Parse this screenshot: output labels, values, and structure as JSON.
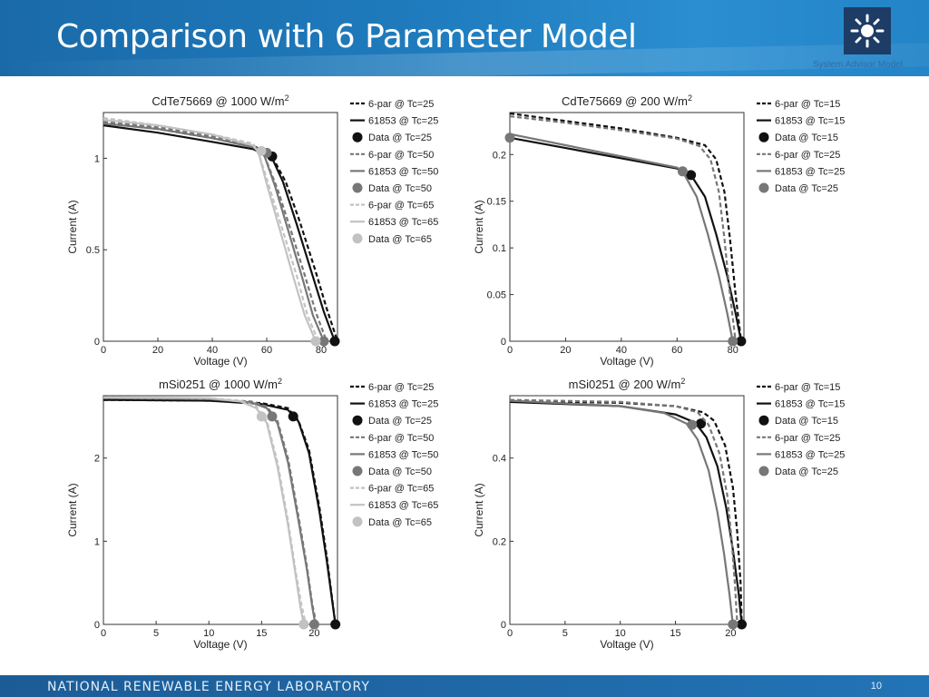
{
  "slide": {
    "title": "Comparison with 6 Parameter Model",
    "logo_icon": "sun-icon",
    "logo_caption": "System Advisor Model",
    "footer": "NATIONAL RENEWABLE ENERGY LABORATORY",
    "page_number": "10"
  },
  "chart_data": [
    {
      "type": "line",
      "title": "CdTe75669 @ 1000 W/m",
      "title_sup": "2",
      "xlabel": "Voltage (V)",
      "ylabel": "Current (A)",
      "xlim": [
        0,
        86
      ],
      "ylim": [
        0,
        1.25
      ],
      "xticks": [
        0,
        20,
        40,
        60,
        80
      ],
      "yticks": [
        0,
        0.5,
        1
      ],
      "ytick_labels": [
        "0",
        "0.5",
        "1"
      ],
      "legend": [
        "6-par @ Tc=25",
        "61853 @ Tc=25",
        "Data @ Tc=25",
        "6-par @ Tc=50",
        "61853 @ Tc=50",
        "Data @ Tc=50",
        "6-par @ Tc=65",
        "61853 @ Tc=65",
        "Data @ Tc=65"
      ],
      "series": [
        {
          "name": "6-par @ Tc=25",
          "color": "#111111",
          "dash": true,
          "x": [
            0,
            20,
            40,
            55,
            62,
            67,
            72,
            78,
            82,
            86
          ],
          "y": [
            1.2,
            1.16,
            1.11,
            1.07,
            1.01,
            0.87,
            0.66,
            0.38,
            0.18,
            0
          ]
        },
        {
          "name": "61853 @ Tc=25",
          "color": "#111111",
          "dash": false,
          "x": [
            0,
            20,
            40,
            55,
            62,
            66,
            71,
            76,
            81,
            85
          ],
          "y": [
            1.18,
            1.14,
            1.09,
            1.05,
            1.0,
            0.87,
            0.64,
            0.4,
            0.16,
            0
          ]
        },
        {
          "name": "Data @ Tc=25",
          "color": "#111111",
          "marker": true,
          "x": [
            62,
            85
          ],
          "y": [
            1.01,
            0
          ]
        },
        {
          "name": "6-par @ Tc=50",
          "color": "#777777",
          "dash": true,
          "x": [
            0,
            20,
            40,
            55,
            59,
            64,
            69,
            74,
            78,
            82
          ],
          "y": [
            1.2,
            1.17,
            1.12,
            1.07,
            1.02,
            0.83,
            0.6,
            0.36,
            0.16,
            0
          ]
        },
        {
          "name": "61853 @ Tc=50",
          "color": "#777777",
          "dash": false,
          "x": [
            0,
            20,
            40,
            55,
            59,
            63,
            68,
            73,
            77,
            81
          ],
          "y": [
            1.19,
            1.16,
            1.11,
            1.06,
            1.02,
            0.85,
            0.6,
            0.35,
            0.14,
            0
          ]
        },
        {
          "name": "Data @ Tc=50",
          "color": "#777777",
          "marker": true,
          "x": [
            60,
            81
          ],
          "y": [
            1.03,
            0
          ]
        },
        {
          "name": "6-par @ Tc=65",
          "color": "#c2c2c2",
          "dash": true,
          "x": [
            0,
            20,
            40,
            55,
            57,
            61,
            66,
            71,
            75,
            79
          ],
          "y": [
            1.22,
            1.18,
            1.13,
            1.08,
            1.03,
            0.84,
            0.6,
            0.36,
            0.14,
            0
          ]
        },
        {
          "name": "61853 @ Tc=65",
          "color": "#c2c2c2",
          "dash": false,
          "x": [
            0,
            20,
            40,
            55,
            57,
            60,
            65,
            70,
            74,
            78
          ],
          "y": [
            1.21,
            1.18,
            1.13,
            1.07,
            1.03,
            0.86,
            0.6,
            0.34,
            0.14,
            0
          ]
        },
        {
          "name": "Data @ Tc=65",
          "color": "#c2c2c2",
          "marker": true,
          "x": [
            58,
            78
          ],
          "y": [
            1.04,
            0
          ]
        }
      ]
    },
    {
      "type": "line",
      "title": "CdTe75669 @ 200 W/m",
      "title_sup": "2",
      "xlabel": "Voltage (V)",
      "ylabel": "Current (A)",
      "xlim": [
        0,
        84
      ],
      "ylim": [
        0,
        0.245
      ],
      "xticks": [
        0,
        20,
        40,
        60,
        80
      ],
      "yticks": [
        0,
        0.05,
        0.1,
        0.15,
        0.2
      ],
      "ytick_labels": [
        "0",
        "0.05",
        "0.1",
        "0.15",
        "0.2"
      ],
      "legend": [
        "6-par @ Tc=15",
        "61853 @ Tc=15",
        "Data @ Tc=15",
        "6-par @ Tc=25",
        "61853 @ Tc=25",
        "Data @ Tc=25"
      ],
      "series": [
        {
          "name": "6-par @ Tc=15",
          "color": "#111111",
          "dash": true,
          "x": [
            0,
            20,
            40,
            60,
            70,
            74,
            77,
            79,
            81,
            83
          ],
          "y": [
            0.244,
            0.236,
            0.228,
            0.218,
            0.21,
            0.195,
            0.16,
            0.11,
            0.05,
            0
          ]
        },
        {
          "name": "61853 @ Tc=15",
          "color": "#111111",
          "dash": false,
          "x": [
            0,
            20,
            40,
            60,
            65,
            70,
            74,
            78,
            81,
            83
          ],
          "y": [
            0.218,
            0.207,
            0.196,
            0.185,
            0.178,
            0.155,
            0.115,
            0.07,
            0.03,
            0
          ]
        },
        {
          "name": "Data @ Tc=15",
          "color": "#111111",
          "marker": true,
          "x": [
            65,
            83
          ],
          "y": [
            0.178,
            0
          ]
        },
        {
          "name": "6-par @ Tc=25",
          "color": "#777777",
          "dash": true,
          "x": [
            0,
            20,
            40,
            60,
            68,
            72,
            75,
            77,
            79,
            81
          ],
          "y": [
            0.241,
            0.234,
            0.226,
            0.217,
            0.209,
            0.195,
            0.16,
            0.11,
            0.05,
            0
          ]
        },
        {
          "name": "61853 @ Tc=25",
          "color": "#777777",
          "dash": false,
          "x": [
            0,
            20,
            40,
            60,
            62,
            67,
            71,
            75,
            78,
            80
          ],
          "y": [
            0.222,
            0.21,
            0.198,
            0.186,
            0.182,
            0.155,
            0.115,
            0.07,
            0.03,
            0
          ]
        },
        {
          "name": "Data @ Tc=25",
          "color": "#777777",
          "marker": true,
          "x": [
            0,
            62,
            80
          ],
          "y": [
            0.218,
            0.182,
            0
          ]
        }
      ]
    },
    {
      "type": "line",
      "title": "mSi0251 @ 1000 W/m",
      "title_sup": "2",
      "xlabel": "Voltage (V)",
      "ylabel": "Current (A)",
      "xlim": [
        0,
        22.2
      ],
      "ylim": [
        0,
        2.75
      ],
      "xticks": [
        0,
        5,
        10,
        15,
        20
      ],
      "yticks": [
        0,
        1,
        2
      ],
      "ytick_labels": [
        "0",
        "1",
        "2"
      ],
      "legend": [
        "6-par @ Tc=25",
        "61853 @ Tc=25",
        "Data @ Tc=25",
        "6-par @ Tc=50",
        "61853 @ Tc=50",
        "Data @ Tc=50",
        "6-par @ Tc=65",
        "61853 @ Tc=65",
        "Data @ Tc=65"
      ],
      "series": [
        {
          "name": "6-par @ Tc=25",
          "color": "#111111",
          "dash": true,
          "x": [
            0,
            10,
            15,
            17.5,
            18.5,
            19.5,
            20.5,
            21.2,
            21.7,
            22
          ],
          "y": [
            2.7,
            2.69,
            2.66,
            2.6,
            2.45,
            2.1,
            1.4,
            0.8,
            0.3,
            0
          ]
        },
        {
          "name": "61853 @ Tc=25",
          "color": "#111111",
          "dash": false,
          "x": [
            0,
            10,
            15,
            17.5,
            18.5,
            19.5,
            20.5,
            21.2,
            21.7,
            22
          ],
          "y": [
            2.7,
            2.69,
            2.65,
            2.58,
            2.44,
            2.06,
            1.35,
            0.75,
            0.28,
            0
          ]
        },
        {
          "name": "Data @ Tc=25",
          "color": "#111111",
          "marker": true,
          "x": [
            18,
            22
          ],
          "y": [
            2.5,
            0
          ]
        },
        {
          "name": "6-par @ Tc=50",
          "color": "#777777",
          "dash": true,
          "x": [
            0,
            10,
            14,
            15.5,
            16.5,
            17.5,
            18.5,
            19.3,
            19.8,
            20.2
          ],
          "y": [
            2.72,
            2.71,
            2.68,
            2.62,
            2.45,
            2.0,
            1.3,
            0.7,
            0.25,
            0
          ]
        },
        {
          "name": "61853 @ Tc=50",
          "color": "#777777",
          "dash": false,
          "x": [
            0,
            10,
            14,
            15.5,
            16.5,
            17.5,
            18.5,
            19.3,
            19.8,
            20.1
          ],
          "y": [
            2.72,
            2.71,
            2.67,
            2.6,
            2.42,
            1.95,
            1.25,
            0.66,
            0.22,
            0
          ]
        },
        {
          "name": "Data @ Tc=50",
          "color": "#777777",
          "marker": true,
          "x": [
            16,
            20
          ],
          "y": [
            2.5,
            0
          ]
        },
        {
          "name": "6-par @ Tc=65",
          "color": "#c2c2c2",
          "dash": true,
          "x": [
            0,
            10,
            13,
            14.5,
            15.5,
            16.5,
            17.5,
            18.2,
            18.8,
            19.2
          ],
          "y": [
            2.73,
            2.72,
            2.69,
            2.62,
            2.45,
            1.95,
            1.25,
            0.66,
            0.22,
            0
          ]
        },
        {
          "name": "61853 @ Tc=65",
          "color": "#c2c2c2",
          "dash": false,
          "x": [
            0,
            10,
            13,
            14.5,
            15.5,
            16.5,
            17.5,
            18.2,
            18.7,
            19
          ],
          "y": [
            2.73,
            2.72,
            2.68,
            2.6,
            2.42,
            1.9,
            1.2,
            0.62,
            0.2,
            0
          ]
        },
        {
          "name": "Data @ Tc=65",
          "color": "#c2c2c2",
          "marker": true,
          "x": [
            15,
            19
          ],
          "y": [
            2.5,
            0
          ]
        }
      ]
    },
    {
      "type": "line",
      "title": "mSi0251 @ 200 W/m",
      "title_sup": "2",
      "xlabel": "Voltage (V)",
      "ylabel": "Current (A)",
      "xlim": [
        0,
        21.2
      ],
      "ylim": [
        0,
        0.55
      ],
      "xticks": [
        0,
        5,
        10,
        15,
        20
      ],
      "yticks": [
        0,
        0.2,
        0.4
      ],
      "ytick_labels": [
        "0",
        "0.2",
        "0.4"
      ],
      "legend": [
        "6-par @ Tc=15",
        "61853 @ Tc=15",
        "Data @ Tc=15",
        "6-par @ Tc=25",
        "61853 @ Tc=25",
        "Data @ Tc=25"
      ],
      "series": [
        {
          "name": "6-par @ Tc=15",
          "color": "#111111",
          "dash": true,
          "x": [
            0,
            10,
            15,
            17.5,
            18.5,
            19.5,
            20.2,
            20.6,
            20.9,
            21
          ],
          "y": [
            0.537,
            0.533,
            0.525,
            0.51,
            0.49,
            0.43,
            0.33,
            0.22,
            0.1,
            0
          ]
        },
        {
          "name": "61853 @ Tc=15",
          "color": "#111111",
          "dash": false,
          "x": [
            0,
            10,
            15,
            16.8,
            17.8,
            18.8,
            19.6,
            20.2,
            20.7,
            21
          ],
          "y": [
            0.535,
            0.525,
            0.505,
            0.485,
            0.45,
            0.38,
            0.28,
            0.18,
            0.08,
            0
          ]
        },
        {
          "name": "Data @ Tc=15",
          "color": "#111111",
          "marker": true,
          "x": [
            17.3,
            21
          ],
          "y": [
            0.483,
            0
          ]
        },
        {
          "name": "6-par @ Tc=25",
          "color": "#777777",
          "dash": true,
          "x": [
            0,
            10,
            15,
            17,
            18,
            19,
            19.7,
            20.1,
            20.4,
            20.6
          ],
          "y": [
            0.54,
            0.535,
            0.525,
            0.51,
            0.48,
            0.41,
            0.31,
            0.2,
            0.09,
            0
          ]
        },
        {
          "name": "61853 @ Tc=25",
          "color": "#777777",
          "dash": false,
          "x": [
            0,
            10,
            14,
            16,
            17,
            18,
            18.8,
            19.4,
            19.9,
            20.2
          ],
          "y": [
            0.538,
            0.525,
            0.508,
            0.483,
            0.445,
            0.37,
            0.27,
            0.17,
            0.07,
            0
          ]
        },
        {
          "name": "Data @ Tc=25",
          "color": "#777777",
          "marker": true,
          "x": [
            16.5,
            20.2
          ],
          "y": [
            0.48,
            0
          ]
        }
      ]
    }
  ]
}
